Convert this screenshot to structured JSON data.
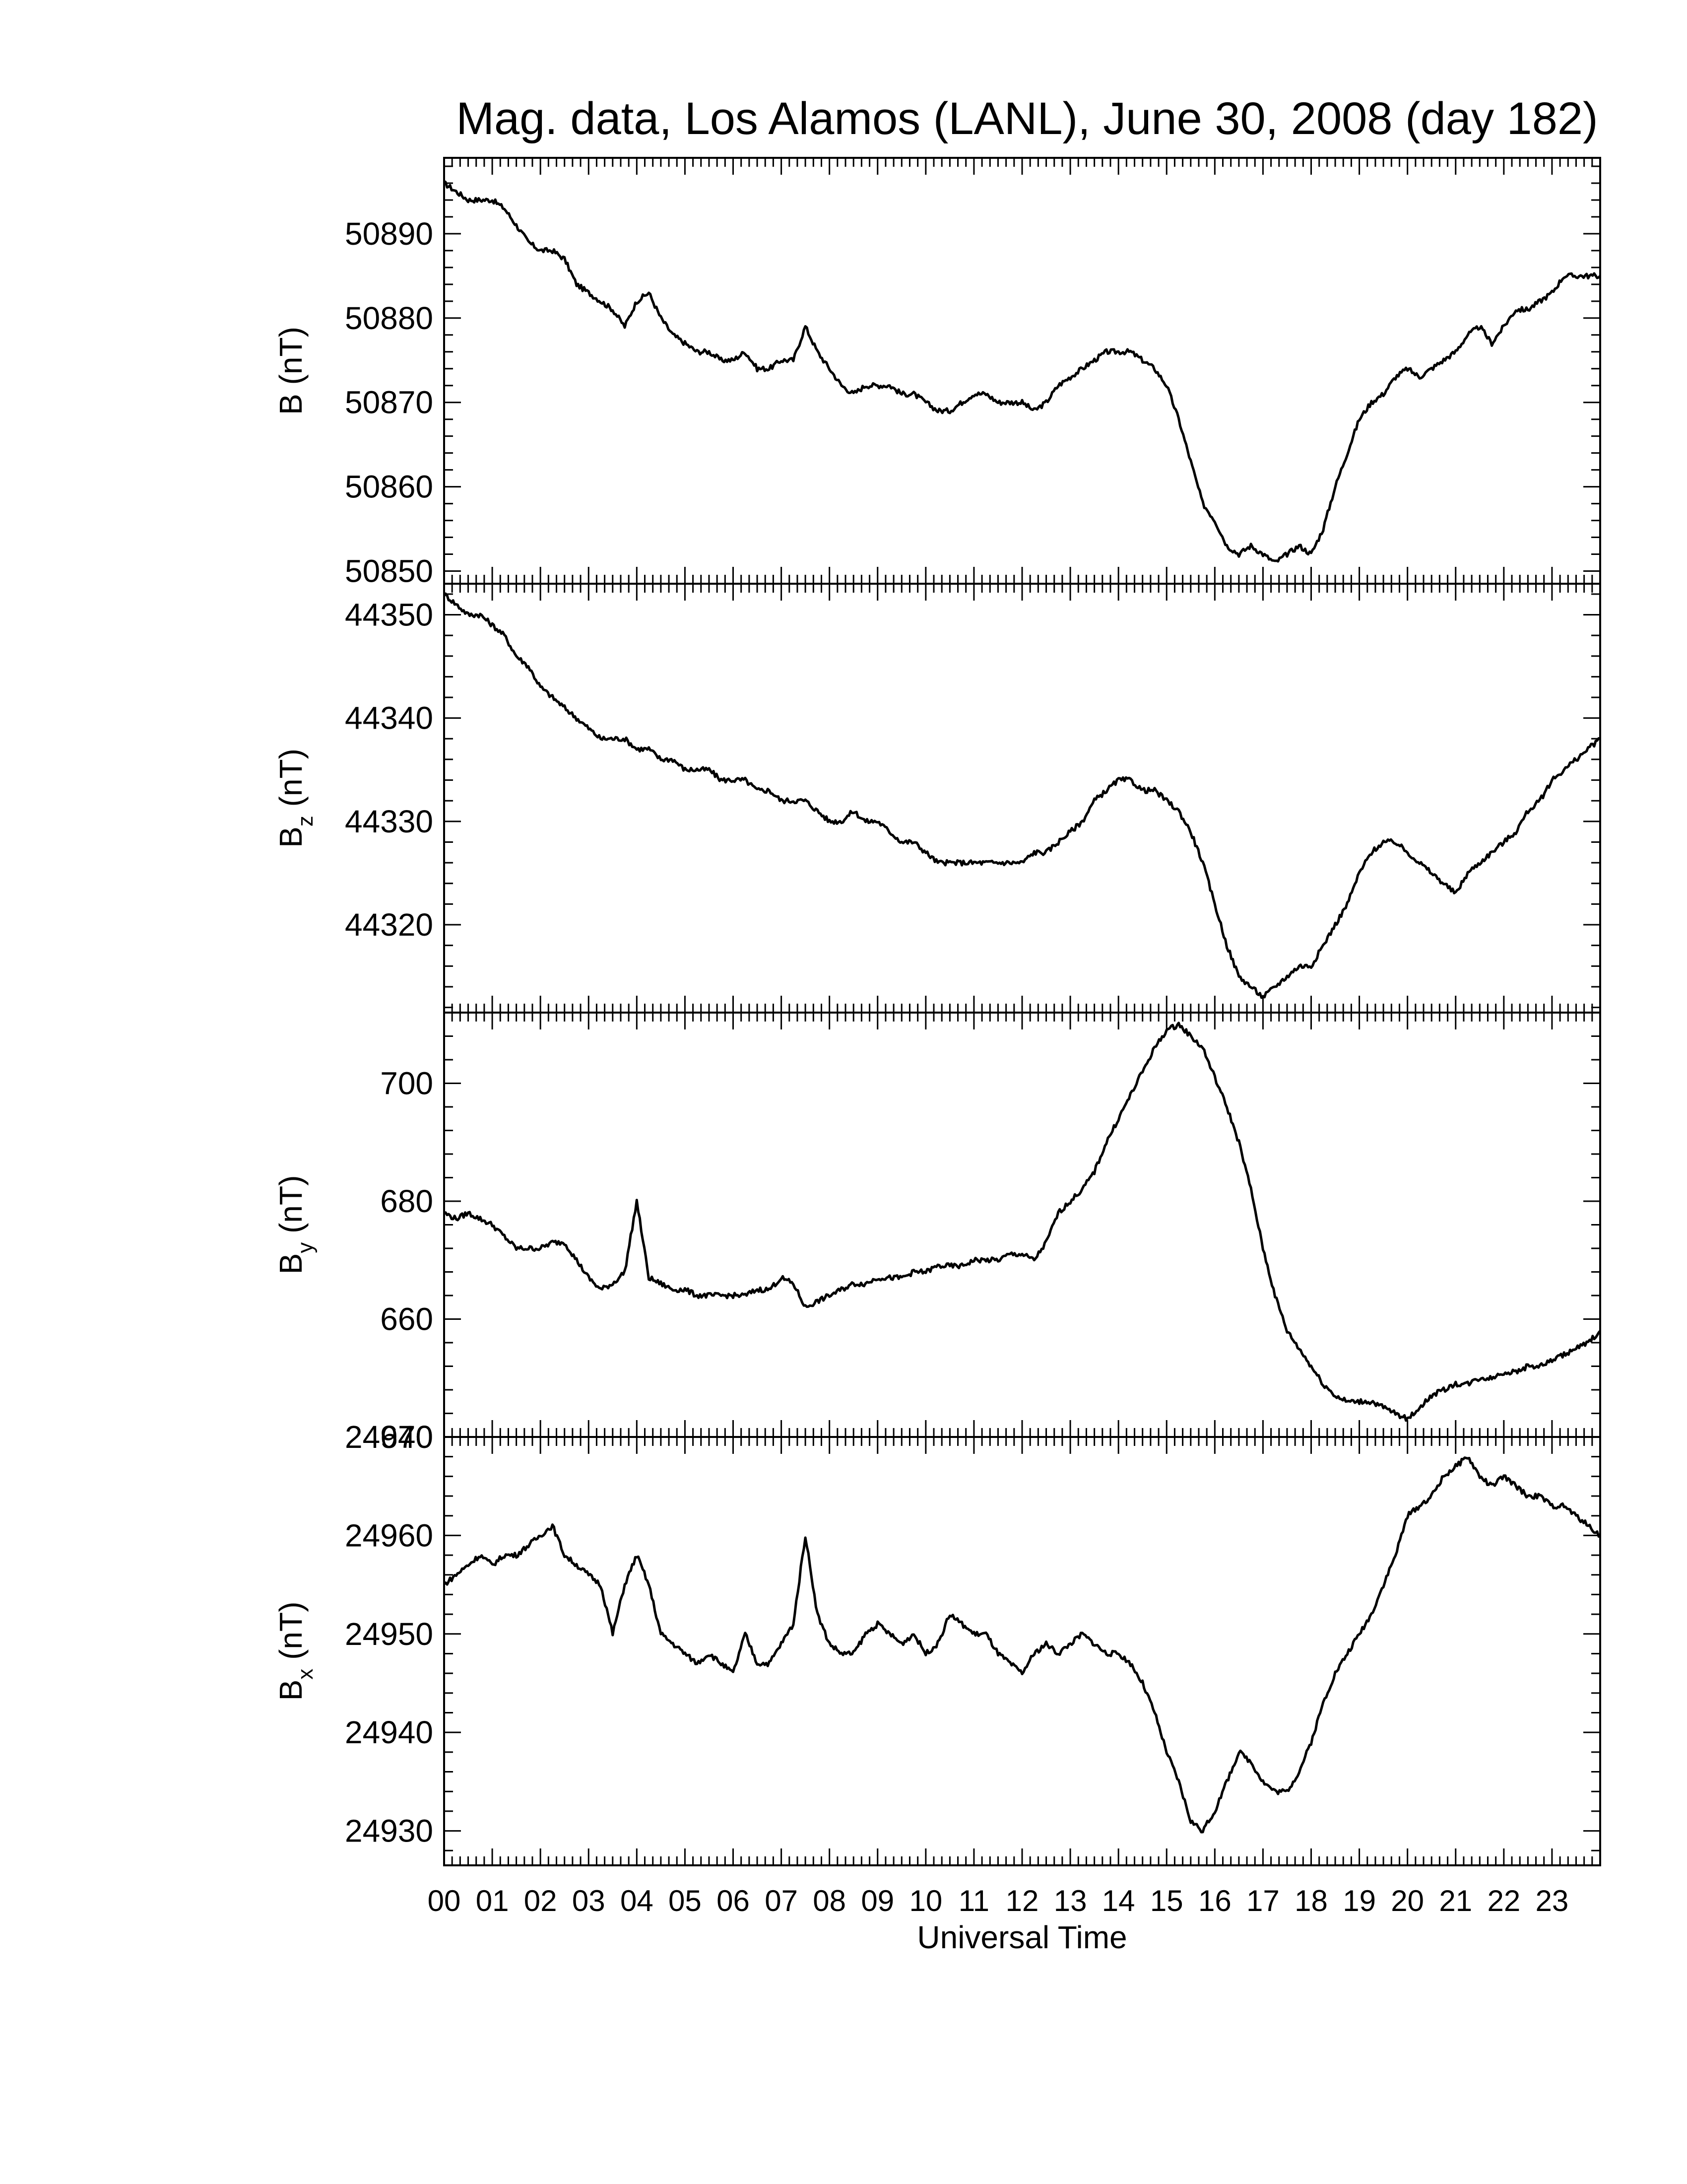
{
  "title": "Mag. data, Los Alamos (LANL), June 30, 2008 (day 182)",
  "chart_data": {
    "type": "line",
    "title": "Mag. data, Los Alamos (LANL), June 30, 2008 (day 182)",
    "xlabel": "Universal Time",
    "xlim": [
      0,
      24
    ],
    "x_ticks": [
      "00",
      "01",
      "02",
      "03",
      "04",
      "05",
      "06",
      "07",
      "08",
      "09",
      "10",
      "11",
      "12",
      "13",
      "14",
      "15",
      "16",
      "17",
      "18",
      "19",
      "20",
      "21",
      "22",
      "23"
    ],
    "line_color": "#000000",
    "panels": [
      {
        "name": "B",
        "ylabel_main": "B",
        "ylabel_sub": "",
        "ylabel_unit": " (nT)",
        "ylim": [
          50848.5,
          50899.0
        ],
        "yticks": [
          50850,
          50860,
          50870,
          50880,
          50890
        ],
        "ytick_labels": [
          "50850",
          "50860",
          "50870",
          "50880",
          "50890"
        ],
        "x": [
          0,
          0.25,
          0.5,
          0.75,
          1,
          1.25,
          1.5,
          1.75,
          2,
          2.25,
          2.5,
          2.75,
          3,
          3.25,
          3.5,
          3.75,
          4,
          4.25,
          4.5,
          4.75,
          5,
          5.25,
          5.5,
          5.75,
          6,
          6.25,
          6.5,
          6.75,
          7,
          7.25,
          7.5,
          7.75,
          8,
          8.25,
          8.5,
          8.75,
          9,
          9.25,
          9.5,
          9.75,
          10,
          10.25,
          10.5,
          10.75,
          11,
          11.25,
          11.5,
          11.75,
          12,
          12.25,
          12.5,
          12.75,
          13,
          13.25,
          13.5,
          13.75,
          14,
          14.25,
          14.5,
          14.75,
          15,
          15.25,
          15.5,
          15.75,
          16,
          16.25,
          16.5,
          16.75,
          17,
          17.25,
          17.5,
          17.75,
          18,
          18.25,
          18.5,
          18.75,
          19,
          19.25,
          19.5,
          19.75,
          20,
          20.25,
          20.5,
          20.75,
          21,
          21.25,
          21.5,
          21.75,
          22,
          22.25,
          22.5,
          22.75,
          23,
          23.25,
          23.5,
          23.75,
          24
        ],
        "values": [
          50896,
          50895,
          50894,
          50894,
          50894,
          50893,
          50891,
          50889,
          50888,
          50888,
          50887,
          50884,
          50883,
          50882,
          50881,
          50879,
          50882,
          50883,
          50880,
          50878,
          50877,
          50876,
          50876,
          50875,
          50875,
          50876,
          50874,
          50874,
          50875,
          50875,
          50879,
          50876,
          50874,
          50872,
          50871,
          50872,
          50872,
          50872,
          50871,
          50871,
          50870,
          50869,
          50869,
          50870,
          50871,
          50871,
          50870,
          50870,
          50870,
          50869,
          50870,
          50872,
          50873,
          50874,
          50875,
          50876,
          50876,
          50876,
          50875,
          50874,
          50872,
          50868,
          50863,
          50858,
          50856,
          50853,
          50852,
          50853,
          50852,
          50851,
          50852,
          50853,
          50852,
          50855,
          50860,
          50864,
          50868,
          50870,
          50871,
          50873,
          50874,
          50873,
          50874,
          50875,
          50876,
          50878,
          50879,
          50877,
          50879,
          50881,
          50881,
          50882,
          50883,
          50885,
          50885,
          50885,
          50885
        ]
      },
      {
        "name": "Bz",
        "ylabel_main": "B",
        "ylabel_sub": "z",
        "ylabel_unit": " (nT)",
        "ylim": [
          44311.5,
          44353.0
        ],
        "yticks": [
          44320,
          44330,
          44340,
          44350
        ],
        "ytick_labels": [
          "44320",
          "44330",
          "44340",
          "44350"
        ],
        "x": [
          0,
          0.25,
          0.5,
          0.75,
          1,
          1.25,
          1.5,
          1.75,
          2,
          2.25,
          2.5,
          2.75,
          3,
          3.25,
          3.5,
          3.75,
          4,
          4.25,
          4.5,
          4.75,
          5,
          5.25,
          5.5,
          5.75,
          6,
          6.25,
          6.5,
          6.75,
          7,
          7.25,
          7.5,
          7.75,
          8,
          8.25,
          8.5,
          8.75,
          9,
          9.25,
          9.5,
          9.75,
          10,
          10.25,
          10.5,
          10.75,
          11,
          11.25,
          11.5,
          11.75,
          12,
          12.25,
          12.5,
          12.75,
          13,
          13.25,
          13.5,
          13.75,
          14,
          14.25,
          14.5,
          14.75,
          15,
          15.25,
          15.5,
          15.75,
          16,
          16.25,
          16.5,
          16.75,
          17,
          17.25,
          17.5,
          17.75,
          18,
          18.25,
          18.5,
          18.75,
          19,
          19.25,
          19.5,
          19.75,
          20,
          20.25,
          20.5,
          20.75,
          21,
          21.25,
          21.5,
          21.75,
          22,
          22.25,
          22.5,
          22.75,
          23,
          23.25,
          23.5,
          23.75,
          24
        ],
        "values": [
          44352,
          44351,
          44350,
          44350,
          44349,
          44348,
          44346,
          44345,
          44343,
          44342,
          44341,
          44340,
          44339,
          44338,
          44338,
          44338,
          44337,
          44337,
          44336,
          44336,
          44335,
          44335,
          44335,
          44334,
          44334,
          44334,
          44333,
          44333,
          44332,
          44332,
          44332,
          44331,
          44330,
          44330,
          44331,
          44330,
          44330,
          44329,
          44328,
          44328,
          44327,
          44326,
          44326,
          44326,
          44326,
          44326,
          44326,
          44326,
          44326,
          44327,
          44327,
          44328,
          44329,
          44330,
          44332,
          44333,
          44334,
          44334,
          44333,
          44333,
          44332,
          44331,
          44329,
          44326,
          44322,
          44318,
          44315,
          44314,
          44313,
          44314,
          44315,
          44316,
          44316,
          44318,
          44320,
          44322,
          44325,
          44327,
          44328,
          44328,
          44327,
          44326,
          44325,
          44324,
          44323,
          44325,
          44326,
          44327,
          44328,
          44329,
          44331,
          44332,
          44334,
          44335,
          44336,
          44337,
          44338
        ]
      },
      {
        "name": "By",
        "ylabel_main": "B",
        "ylabel_sub": "y",
        "ylabel_unit": " (nT)",
        "ylim": [
          640,
          712
        ],
        "yticks": [
          640,
          660,
          680,
          700
        ],
        "ytick_labels": [
          "640",
          "660",
          "680",
          "700"
        ],
        "x": [
          0,
          0.25,
          0.5,
          0.75,
          1,
          1.25,
          1.5,
          1.75,
          2,
          2.25,
          2.5,
          2.75,
          3,
          3.25,
          3.5,
          3.75,
          4,
          4.25,
          4.5,
          4.75,
          5,
          5.25,
          5.5,
          5.75,
          6,
          6.25,
          6.5,
          6.75,
          7,
          7.25,
          7.5,
          7.75,
          8,
          8.25,
          8.5,
          8.75,
          9,
          9.25,
          9.5,
          9.75,
          10,
          10.25,
          10.5,
          10.75,
          11,
          11.25,
          11.5,
          11.75,
          12,
          12.25,
          12.5,
          12.75,
          13,
          13.25,
          13.5,
          13.75,
          14,
          14.25,
          14.5,
          14.75,
          15,
          15.25,
          15.5,
          15.75,
          16,
          16.25,
          16.5,
          16.75,
          17,
          17.25,
          17.5,
          17.75,
          18,
          18.25,
          18.5,
          18.75,
          19,
          19.25,
          19.5,
          19.75,
          20,
          20.25,
          20.5,
          20.75,
          21,
          21.25,
          21.5,
          21.75,
          22,
          22.25,
          22.5,
          22.75,
          23,
          23.25,
          23.5,
          23.75,
          24
        ],
        "values": [
          678,
          677,
          678,
          677,
          676,
          674,
          672,
          672,
          672,
          673,
          673,
          670,
          667,
          665,
          666,
          668,
          680,
          667,
          666,
          665,
          665,
          664,
          664,
          664,
          664,
          664,
          665,
          665,
          667,
          666,
          662,
          663,
          664,
          665,
          666,
          666,
          667,
          667,
          667,
          668,
          668,
          669,
          669,
          669,
          670,
          670,
          670,
          671,
          671,
          670,
          673,
          678,
          680,
          682,
          685,
          690,
          694,
          698,
          702,
          706,
          709,
          710,
          708,
          706,
          701,
          696,
          690,
          682,
          672,
          664,
          658,
          655,
          652,
          649,
          647,
          646,
          646,
          646,
          645,
          644,
          643,
          645,
          647,
          648,
          649,
          649,
          650,
          650,
          651,
          651,
          652,
          652,
          653,
          654,
          655,
          656,
          658
        ]
      },
      {
        "name": "Bx",
        "ylabel_main": "B",
        "ylabel_sub": "x",
        "ylabel_unit": " (nT)",
        "ylim": [
          24926.5,
          24970.0
        ],
        "yticks": [
          24930,
          24940,
          24950,
          24960,
          24970
        ],
        "ytick_labels": [
          "24930",
          "24940",
          "24950",
          "24960",
          "24970"
        ],
        "x": [
          0,
          0.25,
          0.5,
          0.75,
          1,
          1.25,
          1.5,
          1.75,
          2,
          2.25,
          2.5,
          2.75,
          3,
          3.25,
          3.5,
          3.75,
          4,
          4.25,
          4.5,
          4.75,
          5,
          5.25,
          5.5,
          5.75,
          6,
          6.25,
          6.5,
          6.75,
          7,
          7.25,
          7.5,
          7.75,
          8,
          8.25,
          8.5,
          8.75,
          9,
          9.25,
          9.5,
          9.75,
          10,
          10.25,
          10.5,
          10.75,
          11,
          11.25,
          11.5,
          11.75,
          12,
          12.25,
          12.5,
          12.75,
          13,
          13.25,
          13.5,
          13.75,
          14,
          14.25,
          14.5,
          14.75,
          15,
          15.25,
          15.5,
          15.75,
          16,
          16.25,
          16.5,
          16.75,
          17,
          17.25,
          17.5,
          17.75,
          18,
          18.25,
          18.5,
          18.75,
          19,
          19.25,
          19.5,
          19.75,
          20,
          20.25,
          20.5,
          20.75,
          21,
          21.25,
          21.5,
          21.75,
          22,
          22.25,
          22.5,
          22.75,
          23,
          23.25,
          23.5,
          23.75,
          24
        ],
        "values": [
          24955,
          24956,
          24957,
          24958,
          24957,
          24958,
          24958,
          24959,
          24960,
          24961,
          24958,
          24957,
          24956,
          24955,
          24950,
          24955,
          24958,
          24955,
          24950,
          24949,
          24948,
          24947,
          24948,
          24947,
          24946,
          24950,
          24947,
          24947,
          24949,
          24951,
          24960,
          24952,
          24949,
          24948,
          24948,
          24950,
          24951,
          24950,
          24949,
          24950,
          24948,
          24949,
          24952,
          24951,
          24950,
          24950,
          24948,
          24947,
          24946,
          24948,
          24949,
          24948,
          24949,
          24950,
          24949,
          24948,
          24948,
          24947,
          24945,
          24942,
          24938,
          24935,
          24931,
          24930,
          24932,
          24935,
          24938,
          24937,
          24935,
          24934,
          24934,
          24936,
          24939,
          24943,
          24946,
          24948,
          24950,
          24952,
          24955,
          24958,
          24962,
          24963,
          24964,
          24966,
          24967,
          24968,
          24966,
          24965,
          24966,
          24965,
          24964,
          24964,
          24963,
          24963,
          24962,
          24961,
          24960
        ]
      }
    ]
  }
}
